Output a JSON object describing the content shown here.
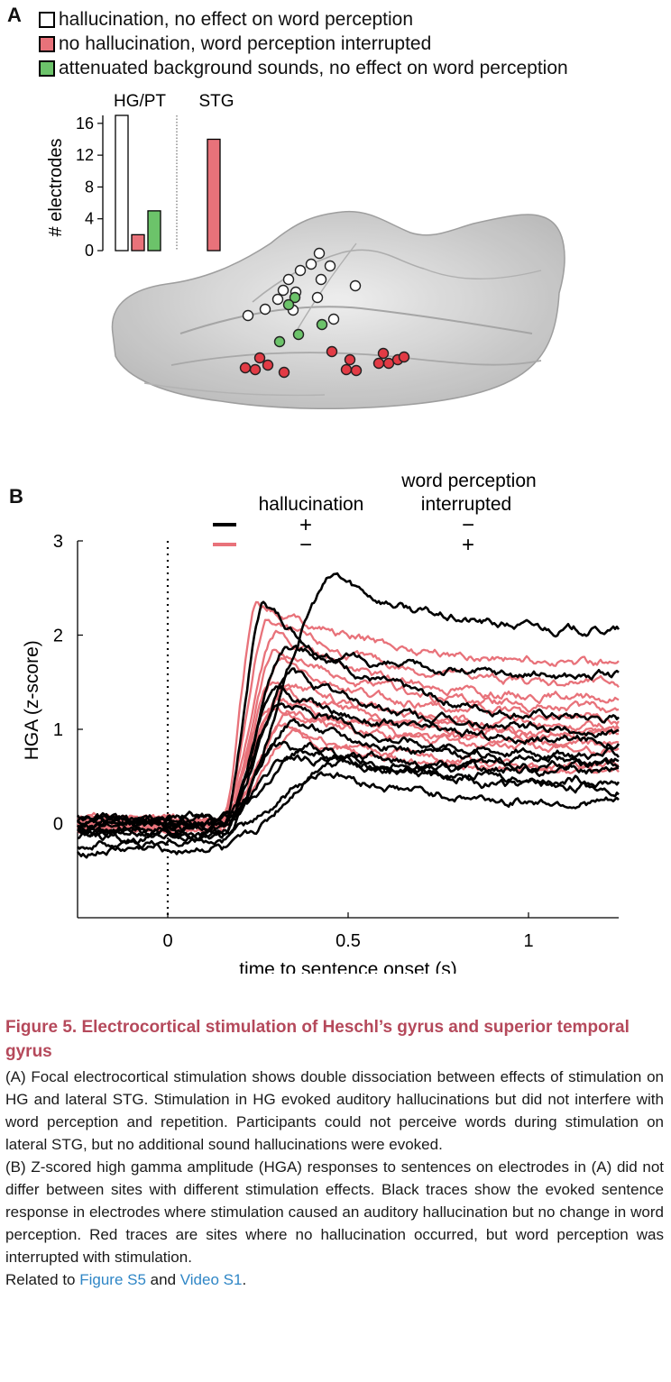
{
  "panel_a": {
    "label": "A",
    "legend": [
      {
        "text": "hallucination, no effect on word perception",
        "color": "#ffffff"
      },
      {
        "text": "no hallucination, word perception interrupted",
        "color": "#e8727a"
      },
      {
        "text": "attenuated background sounds, no effect on word perception",
        "color": "#6cc36a"
      }
    ]
  },
  "chart_data": [
    {
      "type": "bar",
      "ylabel": "# electrodes",
      "groups": [
        "HG/PT",
        "STG"
      ],
      "series": [
        {
          "values": [
            17,
            0
          ],
          "color": "#ffffff"
        },
        {
          "values": [
            2,
            14
          ],
          "color": "#e8727a"
        },
        {
          "values": [
            5,
            0
          ],
          "color": "#6cc36a"
        }
      ],
      "yticks": [
        0,
        4,
        8,
        12,
        16
      ],
      "ylim": [
        0,
        17
      ]
    },
    {
      "type": "line",
      "xlabel": "time to sentence onset (s)",
      "ylabel": "HGA (z-score)",
      "xlim": [
        -0.25,
        1.25
      ],
      "ylim": [
        -1,
        3
      ],
      "xticks": [
        0,
        0.5,
        1
      ],
      "yticks": [
        0,
        1,
        2,
        3
      ],
      "legend": {
        "header_1": "hallucination",
        "header_2_line1": "word perception",
        "header_2_line2": "interrupted",
        "rows": [
          {
            "color": "#000000",
            "hallucination": "+",
            "interrupted": "−"
          },
          {
            "color": "#e8727a",
            "hallucination": "−",
            "interrupted": "+"
          }
        ]
      },
      "series": [
        {
          "group": "black",
          "color": "#000000",
          "peak": 2.35,
          "t_peak": 0.27,
          "end": 1.05,
          "baseline": -0.05
        },
        {
          "group": "black",
          "color": "#000000",
          "peak": 2.62,
          "t_peak": 0.47,
          "end": 2.02,
          "baseline": 0.02
        },
        {
          "group": "black",
          "color": "#000000",
          "peak": 1.9,
          "t_peak": 0.33,
          "end": 1.55,
          "baseline": -0.1
        },
        {
          "group": "black",
          "color": "#000000",
          "peak": 1.6,
          "t_peak": 0.35,
          "end": 0.95,
          "baseline": 0.0
        },
        {
          "group": "black",
          "color": "#000000",
          "peak": 1.45,
          "t_peak": 0.3,
          "end": 0.85,
          "baseline": -0.15
        },
        {
          "group": "black",
          "color": "#000000",
          "peak": 1.3,
          "t_peak": 0.32,
          "end": 0.7,
          "baseline": 0.03
        },
        {
          "group": "black",
          "color": "#000000",
          "peak": 1.1,
          "t_peak": 0.35,
          "end": 0.65,
          "baseline": -0.05
        },
        {
          "group": "black",
          "color": "#000000",
          "peak": 0.85,
          "t_peak": 0.3,
          "end": 0.6,
          "baseline": -0.22
        },
        {
          "group": "black",
          "color": "#000000",
          "peak": 0.8,
          "t_peak": 0.4,
          "end": 0.45,
          "baseline": 0.05
        },
        {
          "group": "black",
          "color": "#000000",
          "peak": 0.75,
          "t_peak": 0.5,
          "end": 0.35,
          "baseline": -0.3
        },
        {
          "group": "black",
          "color": "#000000",
          "peak": 0.55,
          "t_peak": 0.45,
          "end": 0.2,
          "baseline": -0.1
        },
        {
          "group": "black",
          "color": "#000000",
          "peak": 0.7,
          "t_peak": 0.35,
          "end": 0.55,
          "baseline": 0.06
        },
        {
          "group": "red",
          "color": "#e8727a",
          "peak": 2.38,
          "t_peak": 0.25,
          "end": 1.68,
          "baseline": 0.0
        },
        {
          "group": "red",
          "color": "#e8727a",
          "peak": 2.15,
          "t_peak": 0.28,
          "end": 1.45,
          "baseline": -0.02
        },
        {
          "group": "red",
          "color": "#e8727a",
          "peak": 2.0,
          "t_peak": 0.3,
          "end": 1.3,
          "baseline": 0.03
        },
        {
          "group": "red",
          "color": "#e8727a",
          "peak": 1.85,
          "t_peak": 0.3,
          "end": 1.2,
          "baseline": -0.05
        },
        {
          "group": "red",
          "color": "#e8727a",
          "peak": 1.7,
          "t_peak": 0.32,
          "end": 1.1,
          "baseline": 0.02
        },
        {
          "group": "red",
          "color": "#e8727a",
          "peak": 1.55,
          "t_peak": 0.3,
          "end": 1.0,
          "baseline": -0.03
        },
        {
          "group": "red",
          "color": "#e8727a",
          "peak": 1.45,
          "t_peak": 0.33,
          "end": 0.9,
          "baseline": 0.04
        },
        {
          "group": "red",
          "color": "#e8727a",
          "peak": 1.35,
          "t_peak": 0.3,
          "end": 0.8,
          "baseline": -0.04
        },
        {
          "group": "red",
          "color": "#e8727a",
          "peak": 1.2,
          "t_peak": 0.35,
          "end": 0.75,
          "baseline": 0.01
        },
        {
          "group": "red",
          "color": "#e8727a",
          "peak": 1.05,
          "t_peak": 0.32,
          "end": 0.6,
          "baseline": -0.06
        },
        {
          "group": "red",
          "color": "#e8727a",
          "peak": 0.95,
          "t_peak": 0.35,
          "end": 0.5,
          "baseline": 0.02
        },
        {
          "group": "red",
          "color": "#e8727a",
          "peak": 1.25,
          "t_peak": 0.28,
          "end": 0.95,
          "baseline": 0.05
        }
      ]
    }
  ],
  "panel_b": {
    "label": "B"
  },
  "caption": {
    "title": "Figure 5.  Electrocortical stimulation of Heschl’s gyrus and superior temporal gyrus",
    "para_a": "(A) Focal electrocortical stimulation shows double dissociation between effects of stimulation on HG and lateral STG. Stimulation in HG evoked auditory hallucinations but did not interfere with word perception and repetition. Participants could not perceive words during stimulation on lateral STG, but no additional sound hallucinations were evoked.",
    "para_b": "(B) Z-scored high gamma amplitude (HGA) responses to sentences on electrodes in (A) did not differ between sites with different stimulation effects. Black traces show the evoked sentence response in electrodes where stimulation caused an auditory hallucination but no change in word perception. Red traces are sites where no hallucination occurred, but word perception was interrupted with stimulation.",
    "related_prefix": "Related to ",
    "link_1": "Figure S5",
    "related_and": " and ",
    "link_2": "Video S1",
    "related_suffix": "."
  }
}
